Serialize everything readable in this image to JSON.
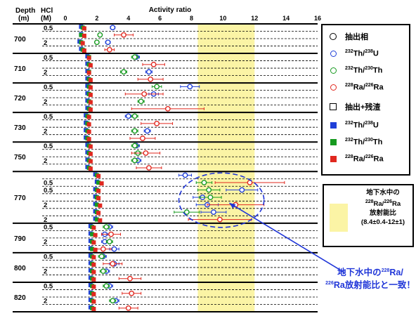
{
  "header": {
    "depth_label": "Depth",
    "depth_unit": "(m)",
    "hcl_label": "HCl",
    "hcl_unit": "(M)",
    "axis_title": "Activity ratio"
  },
  "legend": {
    "extracted_phase": "抽出相",
    "extracted_plus_residue": "抽出+残渣",
    "th232_u238": {
      "a": "232",
      "b": "Th/",
      "c": "238",
      "d": "U"
    },
    "th232_th230": {
      "a": "232",
      "b": "Th/",
      "c": "230",
      "d": "Th"
    },
    "ra228_ra226": {
      "a": "228",
      "b": "Ra/",
      "c": "226",
      "d": "Ra"
    }
  },
  "groundwater_box": {
    "line1": "地下水中の",
    "line2_a": "228",
    "line2_b": "Ra/",
    "line2_c": "226",
    "line2_d": "Ra",
    "line3": "放射能比",
    "line4": "(8.4±0.4-12±1)"
  },
  "callout": {
    "p1": "地下水中の",
    "s1": "228",
    "p2": "Ra/",
    "s2": "226",
    "p3": "Ra放射能比と一致！"
  },
  "colors": {
    "th_u": "#1f3fd8",
    "th_th": "#169a1f",
    "ra_ra": "#e0281f",
    "band": "#fbf4a5",
    "ellipse": "#2036d8"
  },
  "chart_data": {
    "type": "scatter",
    "xlabel": "Activity ratio",
    "xlim": [
      0,
      16
    ],
    "xticks": [
      0,
      2,
      4,
      6,
      8,
      10,
      12,
      14,
      16
    ],
    "highlight_band": [
      8.4,
      12
    ],
    "groups": [
      {
        "depth": "700",
        "rows": [
          {
            "hcl": "0.5",
            "circles": {
              "th_u": [
                3.0,
                0.15
              ],
              "th_th": null,
              "ra_ra": null
            },
            "squares": {
              "th_u": 1.0,
              "th_th": 1.1,
              "ra_ra": 1.2
            }
          },
          {
            "hcl": "",
            "circles": {
              "th_u": null,
              "th_th": [
                2.2,
                0.1
              ],
              "ra_ra": [
                3.7,
                0.6
              ]
            },
            "squares": {
              "th_u": 1.0,
              "th_th": 1.0,
              "ra_ra": 1.2
            }
          },
          {
            "hcl": "2",
            "circles": {
              "th_u": [
                2.7,
                0.15
              ],
              "th_th": [
                2.0,
                0.1
              ],
              "ra_ra": null
            },
            "squares": {
              "th_u": 0.9,
              "th_th": 1.0,
              "ra_ra": 1.1
            }
          },
          {
            "hcl": "",
            "circles": {
              "th_u": null,
              "th_th": null,
              "ra_ra": [
                2.8,
                0.3
              ]
            },
            "squares": {
              "th_u": 1.0,
              "th_th": 1.1,
              "ra_ra": 1.2
            }
          }
        ]
      },
      {
        "depth": "710",
        "rows": [
          {
            "hcl": "0.5",
            "circles": {
              "th_u": [
                4.5,
                0.2
              ],
              "th_th": [
                4.4,
                0.2
              ],
              "ra_ra": null
            },
            "squares": {
              "th_u": 1.4,
              "th_th": 1.5,
              "ra_ra": 1.5
            }
          },
          {
            "hcl": "",
            "circles": {
              "th_u": null,
              "th_th": null,
              "ra_ra": [
                5.6,
                0.7
              ]
            },
            "squares": {
              "th_u": 1.4,
              "th_th": 1.5,
              "ra_ra": 1.6
            }
          },
          {
            "hcl": "2",
            "circles": {
              "th_u": [
                5.3,
                0.2
              ],
              "th_th": [
                3.7,
                0.2
              ],
              "ra_ra": null
            },
            "squares": {
              "th_u": 1.4,
              "th_th": 1.5,
              "ra_ra": 1.5
            }
          },
          {
            "hcl": "",
            "circles": {
              "th_u": null,
              "th_th": null,
              "ra_ra": [
                5.4,
                0.8
              ]
            },
            "squares": {
              "th_u": 1.4,
              "th_th": 1.5,
              "ra_ra": 1.6
            }
          }
        ]
      },
      {
        "depth": "720",
        "rows": [
          {
            "hcl": "0.5",
            "circles": {
              "th_u": [
                7.9,
                0.6
              ],
              "th_th": [
                5.8,
                0.3
              ],
              "ra_ra": null
            },
            "squares": {
              "th_u": 1.4,
              "th_th": 1.5,
              "ra_ra": 1.6
            }
          },
          {
            "hcl": "",
            "circles": {
              "th_u": [
                5.6,
                0.3
              ],
              "th_th": null,
              "ra_ra": [
                5.0,
                1.2
              ]
            },
            "squares": {
              "th_u": 1.4,
              "th_th": 1.5,
              "ra_ra": 1.6
            }
          },
          {
            "hcl": "2",
            "circles": {
              "th_u": null,
              "th_th": [
                4.8,
                0.2
              ],
              "ra_ra": null
            },
            "squares": {
              "th_u": 1.4,
              "th_th": 1.5,
              "ra_ra": 1.6
            }
          },
          {
            "hcl": "",
            "circles": {
              "th_u": null,
              "th_th": null,
              "ra_ra": [
                6.5,
                2.3
              ]
            },
            "squares": {
              "th_u": 1.4,
              "th_th": 1.5,
              "ra_ra": 1.6
            }
          }
        ]
      },
      {
        "depth": "730",
        "rows": [
          {
            "hcl": "0.5",
            "circles": {
              "th_u": [
                4.0,
                0.2
              ],
              "th_th": [
                4.4,
                0.2
              ],
              "ra_ra": null
            },
            "squares": {
              "th_u": 1.3,
              "th_th": 1.4,
              "ra_ra": 1.5
            }
          },
          {
            "hcl": "",
            "circles": {
              "th_u": null,
              "th_th": null,
              "ra_ra": [
                5.8,
                1.0
              ]
            },
            "squares": {
              "th_u": 1.3,
              "th_th": 1.4,
              "ra_ra": 1.5
            }
          },
          {
            "hcl": "2",
            "circles": {
              "th_u": [
                5.2,
                0.2
              ],
              "th_th": [
                4.4,
                0.2
              ],
              "ra_ra": null
            },
            "squares": {
              "th_u": 1.3,
              "th_th": 1.4,
              "ra_ra": 1.5
            }
          },
          {
            "hcl": "",
            "circles": {
              "th_u": null,
              "th_th": null,
              "ra_ra": [
                4.9,
                0.8
              ]
            },
            "squares": {
              "th_u": 1.3,
              "th_th": 1.4,
              "ra_ra": 1.5
            }
          }
        ]
      },
      {
        "depth": "750",
        "rows": [
          {
            "hcl": "0.5",
            "circles": {
              "th_u": [
                4.5,
                0.2
              ],
              "th_th": [
                4.4,
                0.2
              ],
              "ra_ra": null
            },
            "squares": {
              "th_u": 1.4,
              "th_th": 1.5,
              "ra_ra": 1.6
            }
          },
          {
            "hcl": "",
            "circles": {
              "th_u": null,
              "th_th": [
                4.6,
                0.2
              ],
              "ra_ra": [
                5.1,
                0.9
              ]
            },
            "squares": {
              "th_u": 1.4,
              "th_th": 1.5,
              "ra_ra": 1.6
            }
          },
          {
            "hcl": "2",
            "circles": {
              "th_u": [
                4.6,
                0.2
              ],
              "th_th": [
                4.4,
                0.2
              ],
              "ra_ra": null
            },
            "squares": {
              "th_u": 1.4,
              "th_th": 1.5,
              "ra_ra": 1.6
            }
          },
          {
            "hcl": "",
            "circles": {
              "th_u": null,
              "th_th": null,
              "ra_ra": [
                5.3,
                0.8
              ]
            },
            "squares": {
              "th_u": 1.4,
              "th_th": 1.5,
              "ra_ra": 1.6
            }
          }
        ]
      },
      {
        "depth": "770",
        "rows": [
          {
            "hcl": "",
            "circles": {
              "th_u": [
                7.6,
                0.4
              ],
              "th_th": null,
              "ra_ra": null
            },
            "squares": {
              "th_u": 1.9,
              "th_th": 2.0,
              "ra_ra": 2.1
            }
          },
          {
            "hcl": "0.5",
            "circles": {
              "th_u": null,
              "th_th": [
                8.8,
                0.5
              ],
              "ra_ra": [
                11.7,
                2.2
              ]
            },
            "squares": {
              "th_u": 2.0,
              "th_th": 2.1,
              "ra_ra": 2.3
            }
          },
          {
            "hcl": "0.5",
            "circles": {
              "th_u": [
                11.2,
                1.0
              ],
              "th_th": [
                9.1,
                0.7
              ],
              "ra_ra": null
            },
            "squares": {
              "th_u": 1.9,
              "th_th": 2.0,
              "ra_ra": 2.1
            }
          },
          {
            "hcl": "",
            "circles": {
              "th_u": [
                8.7,
                0.6
              ],
              "th_th": [
                9.2,
                0.7
              ],
              "ra_ra": null
            },
            "squares": {
              "th_u": 1.9,
              "th_th": 2.0,
              "ra_ra": 2.1
            }
          },
          {
            "hcl": "2",
            "circles": {
              "th_u": [
                9.0,
                0.7
              ],
              "th_th": null,
              "ra_ra": [
                10.8,
                1.8
              ]
            },
            "squares": {
              "th_u": 1.9,
              "th_th": 2.0,
              "ra_ra": 2.2
            }
          },
          {
            "hcl": "",
            "circles": {
              "th_u": [
                9.4,
                0.8
              ],
              "th_th": [
                7.7,
                0.8
              ],
              "ra_ra": null
            },
            "squares": {
              "th_u": 1.9,
              "th_th": 2.0,
              "ra_ra": 2.1
            }
          },
          {
            "hcl": "2",
            "circles": {
              "th_u": null,
              "th_th": null,
              "ra_ra": [
                9.8,
                2.0
              ]
            },
            "squares": {
              "th_u": 1.9,
              "th_th": 2.0,
              "ra_ra": 2.2
            }
          }
        ]
      },
      {
        "depth": "790",
        "rows": [
          {
            "hcl": "0.5",
            "circles": {
              "th_u": [
                2.8,
                0.2
              ],
              "th_th": [
                2.6,
                0.2
              ],
              "ra_ra": null
            },
            "squares": {
              "th_u": 1.6,
              "th_th": 1.7,
              "ra_ra": 1.8
            }
          },
          {
            "hcl": "",
            "circles": {
              "th_u": [
                2.5,
                0.2
              ],
              "th_th": null,
              "ra_ra": [
                2.9,
                0.6
              ]
            },
            "squares": {
              "th_u": 1.6,
              "th_th": 1.7,
              "ra_ra": 1.9
            }
          },
          {
            "hcl": "2",
            "circles": {
              "th_u": [
                2.5,
                0.2
              ],
              "th_th": [
                2.8,
                0.2
              ],
              "ra_ra": null
            },
            "squares": {
              "th_u": 1.6,
              "th_th": 1.7,
              "ra_ra": 1.8
            }
          },
          {
            "hcl": "",
            "circles": {
              "th_u": [
                3.1,
                0.3
              ],
              "th_th": null,
              "ra_ra": [
                2.4,
                0.5
              ]
            },
            "squares": {
              "th_u": 1.6,
              "th_th": 1.7,
              "ra_ra": 1.9
            }
          }
        ]
      },
      {
        "depth": "800",
        "rows": [
          {
            "hcl": "0.5",
            "circles": {
              "th_u": [
                2.4,
                0.2
              ],
              "th_th": [
                2.3,
                0.2
              ],
              "ra_ra": null
            },
            "squares": {
              "th_u": 1.6,
              "th_th": 1.7,
              "ra_ra": 1.8
            }
          },
          {
            "hcl": "",
            "circles": {
              "th_u": [
                3.1,
                0.3
              ],
              "th_th": null,
              "ra_ra": [
                3.0,
                0.6
              ]
            },
            "squares": {
              "th_u": 1.6,
              "th_th": 1.7,
              "ra_ra": 1.8
            }
          },
          {
            "hcl": "2",
            "circles": {
              "th_u": [
                2.6,
                0.2
              ],
              "th_th": [
                2.4,
                0.2
              ],
              "ra_ra": null
            },
            "squares": {
              "th_u": 1.6,
              "th_th": 1.7,
              "ra_ra": 1.8
            }
          },
          {
            "hcl": "",
            "circles": {
              "th_u": null,
              "th_th": null,
              "ra_ra": [
                4.1,
                0.7
              ]
            },
            "squares": {
              "th_u": 1.6,
              "th_th": 1.7,
              "ra_ra": 1.8
            }
          }
        ]
      },
      {
        "depth": "820",
        "rows": [
          {
            "hcl": "0.5",
            "circles": {
              "th_u": [
                2.8,
                0.2
              ],
              "th_th": [
                2.6,
                0.2
              ],
              "ra_ra": null
            },
            "squares": {
              "th_u": 1.6,
              "th_th": 1.7,
              "ra_ra": 1.8
            }
          },
          {
            "hcl": "",
            "circles": {
              "th_u": null,
              "th_th": null,
              "ra_ra": [
                4.2,
                0.6
              ]
            },
            "squares": {
              "th_u": 1.6,
              "th_th": 1.7,
              "ra_ra": 1.8
            }
          },
          {
            "hcl": "2",
            "circles": {
              "th_u": [
                3.2,
                0.2
              ],
              "th_th": [
                3.0,
                0.2
              ],
              "ra_ra": null
            },
            "squares": {
              "th_u": 1.6,
              "th_th": 1.7,
              "ra_ra": 1.8
            }
          },
          {
            "hcl": "",
            "circles": {
              "th_u": null,
              "th_th": null,
              "ra_ra": [
                4.0,
                0.6
              ]
            },
            "squares": {
              "th_u": 1.6,
              "th_th": 1.7,
              "ra_ra": 1.8
            }
          }
        ]
      }
    ]
  }
}
